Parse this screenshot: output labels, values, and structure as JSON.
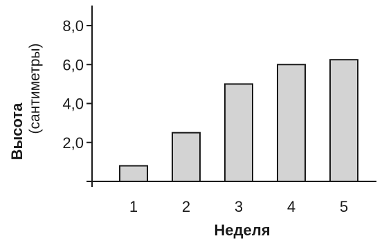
{
  "chart_data": {
    "type": "bar",
    "categories": [
      "1",
      "2",
      "3",
      "4",
      "5"
    ],
    "values": [
      0.8,
      2.5,
      5.0,
      6.0,
      6.25
    ],
    "title": "",
    "xlabel": "Неделя",
    "ylabel": "Высота",
    "ylabel_unit": "(сантиметры)",
    "ylim": [
      0,
      9
    ],
    "yticks": [
      "2,0",
      "4,0",
      "6,0",
      "8,0"
    ],
    "ytick_values": [
      2,
      4,
      6,
      8
    ],
    "grid": false,
    "bar_color": "#d3d3d3",
    "bar_edge_color": "#1a1a1a"
  }
}
